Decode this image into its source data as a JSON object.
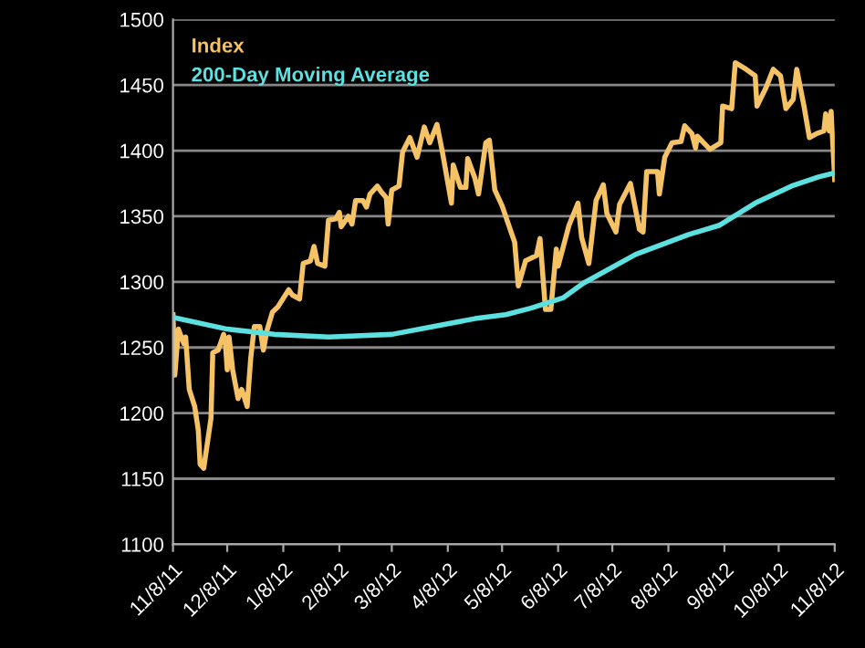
{
  "chart_data": {
    "type": "line",
    "legend": "top left",
    "grid": "y",
    "marker": "none",
    "line_style": "solid",
    "ylim": [
      1100,
      1500
    ],
    "yticks": [
      1100,
      1150,
      1200,
      1250,
      1300,
      1350,
      1400,
      1450,
      1500
    ],
    "xlim": [
      "2011-11-08",
      "2012-11-08"
    ],
    "xticks": [
      {
        "value": "2011-11-08",
        "label": "11/8/11"
      },
      {
        "value": "2011-12-08",
        "label": "12/8/11"
      },
      {
        "value": "2012-01-08",
        "label": "1/8/12"
      },
      {
        "value": "2012-02-08",
        "label": "2/8/12"
      },
      {
        "value": "2012-03-08",
        "label": "3/8/12"
      },
      {
        "value": "2012-04-08",
        "label": "4/8/12"
      },
      {
        "value": "2012-05-08",
        "label": "5/8/12"
      },
      {
        "value": "2012-06-08",
        "label": "6/8/12"
      },
      {
        "value": "2012-07-08",
        "label": "7/8/12"
      },
      {
        "value": "2012-08-08",
        "label": "8/8/12"
      },
      {
        "value": "2012-09-08",
        "label": "9/8/12"
      },
      {
        "value": "2012-10-08",
        "label": "10/8/12"
      },
      {
        "value": "2012-11-08",
        "label": "11/8/12"
      }
    ],
    "series": [
      {
        "name": "Index",
        "color": "#f5c265",
        "x": [
          "2011-11-08",
          "2011-11-09",
          "2011-11-11",
          "2011-11-14",
          "2011-11-15",
          "2011-11-17",
          "2011-11-20",
          "2011-11-22",
          "2011-11-23",
          "2011-11-25",
          "2011-11-29",
          "2011-11-30",
          "2011-12-03",
          "2011-12-06",
          "2011-12-07",
          "2011-12-08",
          "2011-12-09",
          "2011-12-11",
          "2011-12-14",
          "2011-12-16",
          "2011-12-17",
          "2011-12-19",
          "2011-12-21",
          "2011-12-23",
          "2011-12-26",
          "2011-12-28",
          "2011-12-30",
          "2012-01-02",
          "2012-01-05",
          "2012-01-11",
          "2012-01-13",
          "2012-01-17",
          "2012-01-19",
          "2012-01-23",
          "2012-01-25",
          "2012-01-27",
          "2012-01-31",
          "2012-02-02",
          "2012-02-06",
          "2012-02-08",
          "2012-02-09",
          "2012-02-13",
          "2012-02-15",
          "2012-02-17",
          "2012-02-21",
          "2012-02-23",
          "2012-02-25",
          "2012-02-29",
          "2012-03-02",
          "2012-03-05",
          "2012-03-06",
          "2012-03-08",
          "2012-03-12",
          "2012-03-14",
          "2012-03-18",
          "2012-03-22",
          "2012-03-26",
          "2012-03-29",
          "2012-04-02",
          "2012-04-05",
          "2012-04-10",
          "2012-04-11",
          "2012-04-15",
          "2012-04-18",
          "2012-04-19",
          "2012-04-23",
          "2012-04-25",
          "2012-04-29",
          "2012-05-01",
          "2012-05-04",
          "2012-05-08",
          "2012-05-15",
          "2012-05-17",
          "2012-05-21",
          "2012-05-27",
          "2012-05-29",
          "2012-06-01",
          "2012-06-04",
          "2012-06-07",
          "2012-06-08",
          "2012-06-14",
          "2012-06-19",
          "2012-06-21",
          "2012-06-25",
          "2012-06-29",
          "2012-07-03",
          "2012-07-05",
          "2012-07-10",
          "2012-07-12",
          "2012-07-18",
          "2012-07-23",
          "2012-07-25",
          "2012-07-27",
          "2012-08-02",
          "2012-08-03",
          "2012-08-06",
          "2012-08-10",
          "2012-08-15",
          "2012-08-17",
          "2012-08-21",
          "2012-08-23",
          "2012-08-24",
          "2012-08-31",
          "2012-09-06",
          "2012-09-07",
          "2012-09-12",
          "2012-09-14",
          "2012-09-20",
          "2012-09-25",
          "2012-09-26",
          "2012-10-01",
          "2012-10-05",
          "2012-10-09",
          "2012-10-12",
          "2012-10-16",
          "2012-10-18",
          "2012-10-22",
          "2012-10-25",
          "2012-10-29",
          "2012-11-02",
          "2012-11-03",
          "2012-11-05",
          "2012-11-06",
          "2012-11-08"
        ],
        "values": [
          1275,
          1229,
          1264,
          1253,
          1258,
          1218,
          1205,
          1187,
          1161,
          1158,
          1196,
          1246,
          1248,
          1260,
          1253,
          1233,
          1258,
          1233,
          1211,
          1218,
          1214,
          1205,
          1242,
          1266,
          1266,
          1248,
          1263,
          1277,
          1281,
          1294,
          1290,
          1287,
          1314,
          1316,
          1327,
          1314,
          1312,
          1347,
          1348,
          1353,
          1342,
          1350,
          1344,
          1362,
          1362,
          1357,
          1367,
          1373,
          1369,
          1364,
          1344,
          1370,
          1373,
          1399,
          1410,
          1395,
          1418,
          1406,
          1420,
          1399,
          1360,
          1389,
          1372,
          1372,
          1394,
          1379,
          1367,
          1406,
          1408,
          1370,
          1358,
          1330,
          1297,
          1316,
          1320,
          1333,
          1279,
          1279,
          1325,
          1312,
          1343,
          1360,
          1334,
          1314,
          1362,
          1374,
          1352,
          1338,
          1359,
          1375,
          1340,
          1338,
          1384,
          1384,
          1367,
          1395,
          1406,
          1407,
          1419,
          1413,
          1402,
          1411,
          1401,
          1406,
          1434,
          1432,
          1467,
          1462,
          1457,
          1434,
          1448,
          1462,
          1457,
          1432,
          1439,
          1462,
          1434,
          1410,
          1413,
          1415,
          1428,
          1415,
          1430,
          1378
        ]
      },
      {
        "name": "200-Day Moving Average",
        "color": "#5ce0e0",
        "x": [
          "2011-11-08",
          "2011-12-08",
          "2012-01-03",
          "2012-02-02",
          "2012-03-08",
          "2012-03-31",
          "2012-04-23",
          "2012-05-10",
          "2012-05-24",
          "2012-06-11",
          "2012-06-22",
          "2012-07-21",
          "2012-08-19",
          "2012-09-05",
          "2012-09-25",
          "2012-10-15",
          "2012-10-30",
          "2012-11-08"
        ],
        "values": [
          1273,
          1264,
          1260,
          1258,
          1260,
          1266,
          1272,
          1275,
          1280,
          1288,
          1299,
          1321,
          1336,
          1343,
          1360,
          1373,
          1380,
          1383
        ]
      }
    ]
  }
}
